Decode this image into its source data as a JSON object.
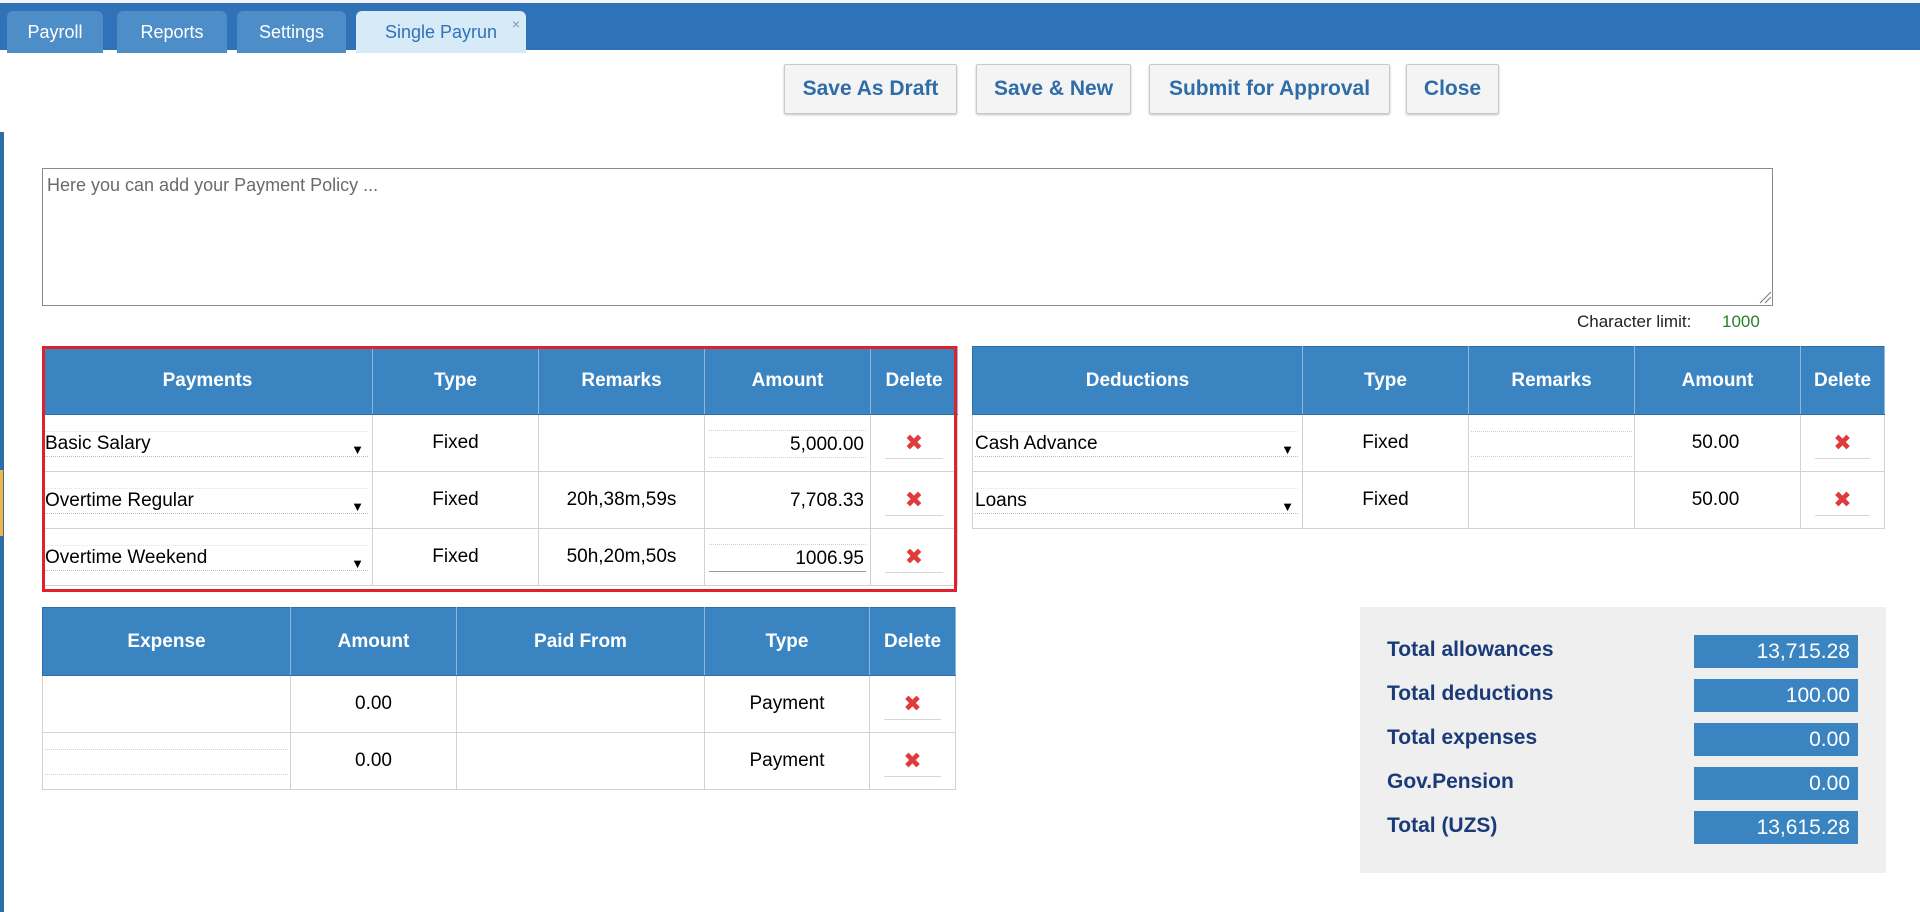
{
  "tabs": [
    {
      "label": "Payroll"
    },
    {
      "label": "Reports"
    },
    {
      "label": "Settings"
    },
    {
      "label": "Single Payrun",
      "close": "×"
    }
  ],
  "toolbar": {
    "save_draft": "Save As Draft",
    "save_new": "Save & New",
    "submit": "Submit for Approval",
    "close": "Close"
  },
  "policy": {
    "placeholder": "Here you can add your Payment Policy ...",
    "char_limit_label": "Character limit:",
    "char_limit_value": "1000"
  },
  "payments": {
    "headers": [
      "Payments",
      "Type",
      "Remarks",
      "Amount",
      "Delete"
    ],
    "rows": [
      {
        "name": "Basic Salary",
        "type": "Fixed",
        "remarks": "",
        "amount": "5,000.00"
      },
      {
        "name": "Overtime Regular",
        "type": "Fixed",
        "remarks": "20h,38m,59s",
        "amount": "7,708.33"
      },
      {
        "name": "Overtime Weekend",
        "type": "Fixed",
        "remarks": "50h,20m,50s",
        "amount": "1006.95"
      }
    ]
  },
  "deductions": {
    "headers": [
      "Deductions",
      "Type",
      "Remarks",
      "Amount",
      "Delete"
    ],
    "rows": [
      {
        "name": "Cash Advance",
        "type": "Fixed",
        "remarks": "",
        "amount": "50.00"
      },
      {
        "name": "Loans",
        "type": "Fixed",
        "remarks": "",
        "amount": "50.00"
      }
    ]
  },
  "expenses": {
    "headers": [
      "Expense",
      "Amount",
      "Paid From",
      "Type",
      "Delete"
    ],
    "rows": [
      {
        "name": "",
        "amount": "0.00",
        "paid_from": "",
        "type": "Payment"
      },
      {
        "name": "",
        "amount": "0.00",
        "paid_from": "",
        "type": "Payment"
      }
    ]
  },
  "totals": [
    {
      "label": "Total allowances",
      "value": "13,715.28"
    },
    {
      "label": "Total deductions",
      "value": "100.00"
    },
    {
      "label": "Total expenses",
      "value": "0.00"
    },
    {
      "label": "Gov.Pension",
      "value": "0.00"
    },
    {
      "label": "Total (UZS)",
      "value": "13,615.28"
    }
  ],
  "icons": {
    "delete": "✖",
    "dropdown": "▼"
  },
  "colors": {
    "tab_bar": "#2f72b8",
    "header": "#3a84c2",
    "delete": "#e03b3b",
    "highlight": "#e0202a",
    "totals_label": "#1b3a78"
  }
}
